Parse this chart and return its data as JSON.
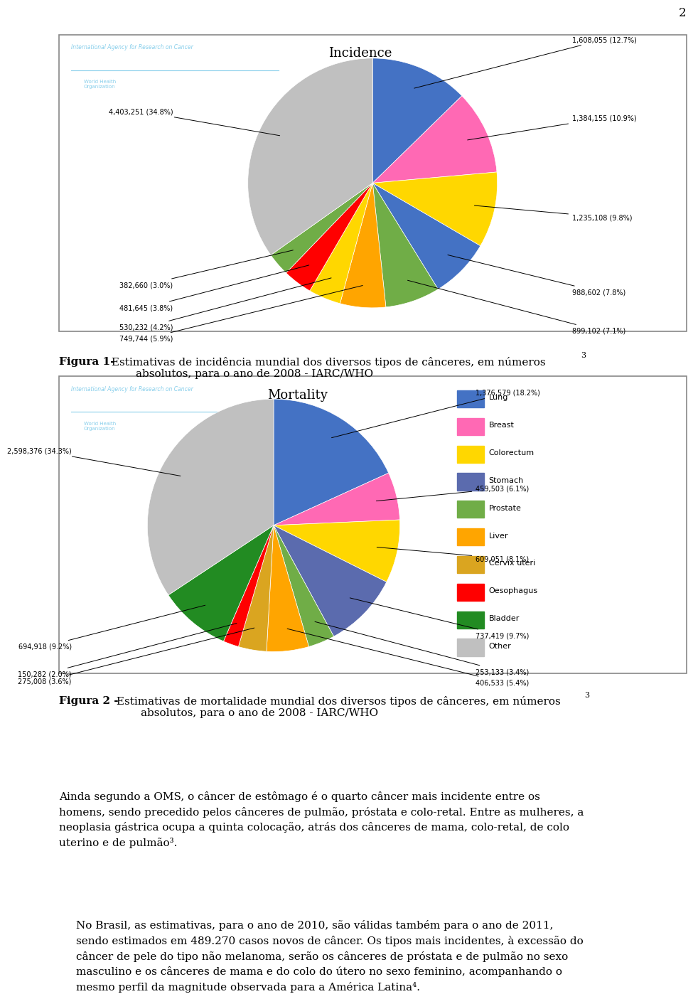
{
  "page_num": "2",
  "fig1": {
    "title": "Incidence",
    "iarc_text": "International Agency for Research on Cancer",
    "who_text": "World Health\nOrganization",
    "slices": [
      {
        "label": "1,608,055 (12.7%)",
        "value": 12.7,
        "color": "#4472C4"
      },
      {
        "label": "1,384,155 (10.9%)",
        "value": 10.9,
        "color": "#FF69B4"
      },
      {
        "label": "1,235,108 (9.8%)",
        "value": 9.8,
        "color": "#FFD700"
      },
      {
        "label": "988,602 (7.8%)",
        "value": 7.8,
        "color": "#4472C4"
      },
      {
        "label": "899,102 (7.1%)",
        "value": 7.1,
        "color": "#70AD47"
      },
      {
        "label": "749,744 (5.9%)",
        "value": 5.9,
        "color": "#FFA500"
      },
      {
        "label": "530,232 (4.2%)",
        "value": 4.2,
        "color": "#FFD700"
      },
      {
        "label": "481,645 (3.8%)",
        "value": 3.8,
        "color": "#FF0000"
      },
      {
        "label": "382,660 (3.0%)",
        "value": 3.0,
        "color": "#70AD47"
      },
      {
        "label": "4,403,251 (34.8%)",
        "value": 34.8,
        "color": "#C0C0C0"
      }
    ]
  },
  "fig2": {
    "title": "Mortality",
    "iarc_text": "International Agency for Research on Cancer",
    "who_text": "World Health\nOrganization",
    "slices": [
      {
        "label": "1,376,579 (18.2%)",
        "value": 18.2,
        "color": "#4472C4",
        "legend": "Lung"
      },
      {
        "label": "459,503 (6.1%)",
        "value": 6.1,
        "color": "#FF69B4",
        "legend": "Breast"
      },
      {
        "label": "609,051 (8.1%)",
        "value": 8.1,
        "color": "#FFD700",
        "legend": "Colorectum"
      },
      {
        "label": "737,419 (9.7%)",
        "value": 9.7,
        "color": "#5B6BAE",
        "legend": "Stomach"
      },
      {
        "label": "253,133 (3.4%)",
        "value": 3.4,
        "color": "#70AD47",
        "legend": "Prostate"
      },
      {
        "label": "406,533 (5.4%)",
        "value": 5.4,
        "color": "#FFA500",
        "legend": "Liver"
      },
      {
        "label": "275,008 (3.6%)",
        "value": 3.6,
        "color": "#DAA520",
        "legend": "Cervix uteri"
      },
      {
        "label": "150,282 (2.0%)",
        "value": 2.0,
        "color": "#FF0000",
        "legend": "Oesophagus"
      },
      {
        "label": "694,918 (9.2%)",
        "value": 9.2,
        "color": "#228B22",
        "legend": "Bladder"
      },
      {
        "label": "2,598,376 (34.3%)",
        "value": 34.3,
        "color": "#C0C0C0",
        "legend": "Other"
      }
    ]
  },
  "caption1_bold": "Figura 1-",
  "caption1_normal": " Estimativas de incidência mundial dos diversos tipos de cânceres, em números\n        absolutos, para o ano de 2008 - IARC/WHO",
  "caption1_super": "3",
  "caption2_bold": "Figura 2 -",
  "caption2_normal": " Estimativas de mortalidade mundial dos diversos tipos de cânceres, em números\n        absolutos, para o ano de 2008 - IARC/WHO",
  "caption2_super": "3",
  "body_text": "Ainda segundo a OMS, o câncer de estômago é o quarto câncer mais incidente entre os\nhomens, sendo precedido pelos cânceres de pulmão, próstata e colo-retal. Entre as mulheres, a\nneoplasia gástrica ocupa a quinta colocação, atrás dos cânceres de mama, colo-retal, de colo\nuterino e de pulmão³.",
  "body_text2": "No Brasil, as estimativas, para o ano de 2010, são válidas também para o ano de 2011,\nsendo estimados em 489.270 casos novos de câncer. Os tipos mais incidentes, à excessão do\ncâncer de pele do tipo não melanoma, serão os cânceres de próstata e de pulmão no sexo\nmasculino e os cânceres de mama e do colo do útero no sexo feminino, acompanhando o\nmesmo perfil da magnitude observada para a América Latina⁴."
}
